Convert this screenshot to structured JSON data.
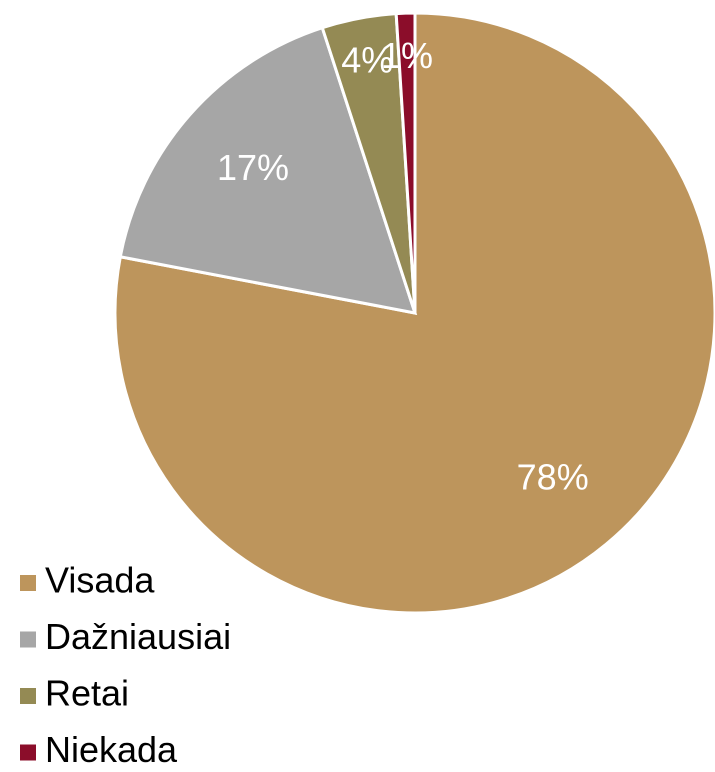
{
  "chart_data": {
    "type": "pie",
    "categories": [
      "Visada",
      "Dažniausiai",
      "Retai",
      "Niekada"
    ],
    "values": [
      78,
      17,
      4,
      1
    ],
    "colors": [
      "#bd955c",
      "#a6a6a6",
      "#948a54",
      "#8b0d2a"
    ],
    "legend": "bottom-left"
  }
}
